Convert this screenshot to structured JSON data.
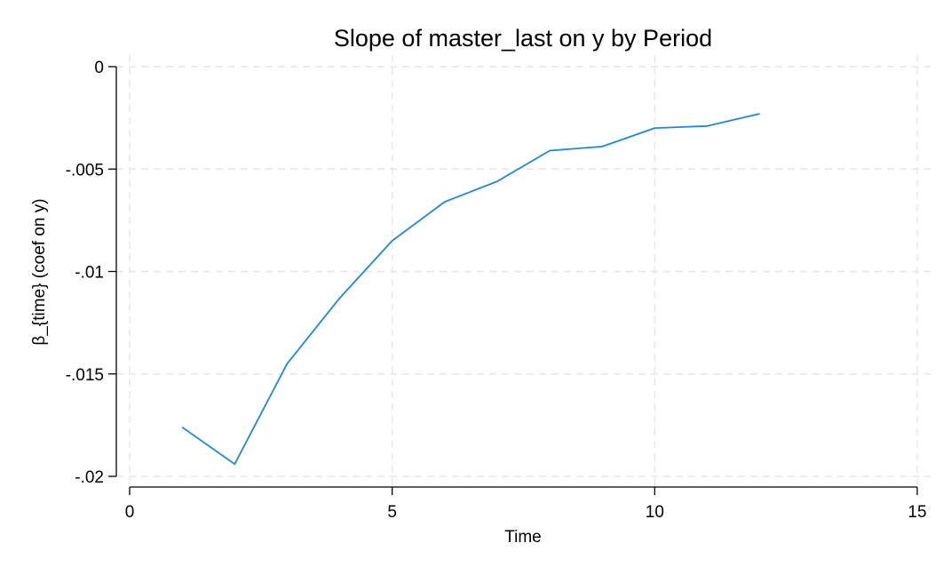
{
  "chart_data": {
    "type": "line",
    "title": "Slope of master_last on y by Period",
    "xlabel": "Time",
    "ylabel": "β_{time} (coef on y)",
    "xlim": [
      0,
      15
    ],
    "ylim": [
      -0.02,
      0
    ],
    "x_ticks": [
      0,
      5,
      10,
      15
    ],
    "x_tick_labels": [
      "0",
      "5",
      "10",
      "15"
    ],
    "y_ticks": [
      0,
      -0.005,
      -0.01,
      -0.015,
      -0.02
    ],
    "y_tick_labels": [
      "0",
      "-.005",
      "-.01",
      "-.015",
      "-.02"
    ],
    "grid": true,
    "legend": "none",
    "series": [
      {
        "color": "#1f86e0",
        "x": [
          1,
          2,
          3,
          4,
          5,
          6,
          7,
          8,
          9,
          10,
          11,
          12
        ],
        "y": [
          -0.0176,
          -0.0194,
          -0.0145,
          -0.0113,
          -0.0085,
          -0.0066,
          -0.0056,
          -0.0041,
          -0.0039,
          -0.003,
          -0.0029,
          -0.0023
        ]
      }
    ]
  }
}
